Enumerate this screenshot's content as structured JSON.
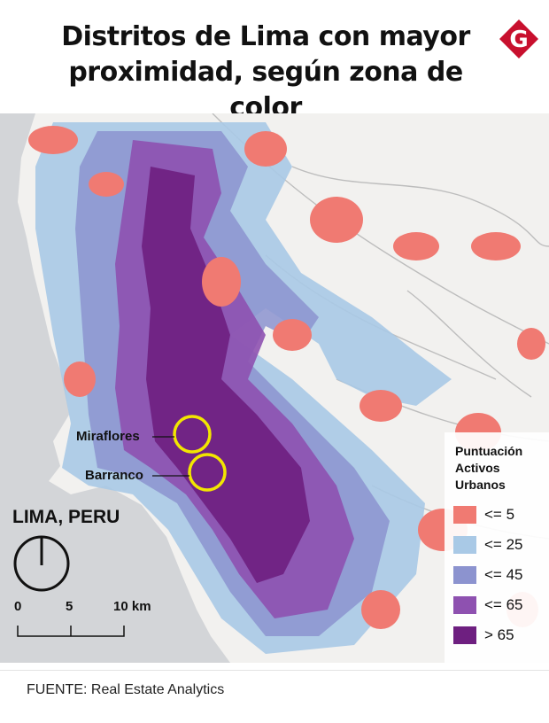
{
  "title_line1": "Distritos de Lima con mayor",
  "title_line2": "proximidad, según zona de color",
  "logo_letter": "G",
  "brand_color": "#c8102e",
  "map": {
    "city_label": "LIMA, PERU",
    "places": [
      {
        "name": "Miraflores"
      },
      {
        "name": "Barranco"
      }
    ],
    "highlight_color": "#f2e600",
    "scale": {
      "ticks": [
        "0",
        "5",
        "10 km"
      ]
    },
    "legend": {
      "title_lines": [
        "Puntuación",
        "Activos",
        "Urbanos"
      ],
      "items": [
        {
          "label": "<= 5",
          "color": "#f07a72"
        },
        {
          "label": "<= 25",
          "color": "#a9c9e6"
        },
        {
          "label": "<= 45",
          "color": "#8c93cf"
        },
        {
          "label": "<= 65",
          "color": "#8e51b0"
        },
        {
          "label": "> 65",
          "color": "#6e1f80"
        }
      ]
    }
  },
  "source": "FUENTE: Real Estate Analytics"
}
